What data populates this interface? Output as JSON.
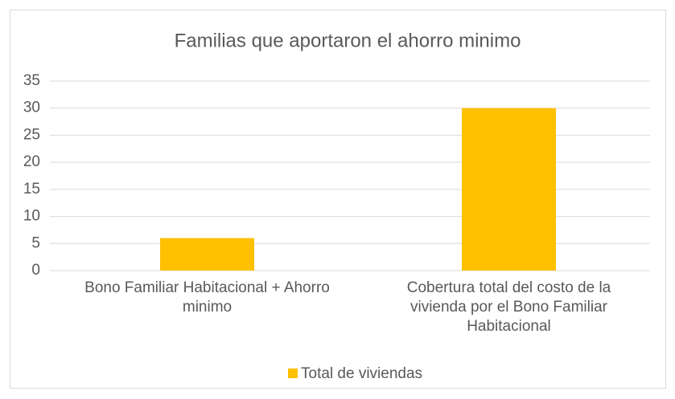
{
  "chart_data": {
    "type": "bar",
    "title": "Familias que aportaron el ahorro minimo",
    "categories": [
      "Bono Familiar Habitacional + Ahorro minimo",
      "Cobertura total del costo de la vivienda por el Bono Familiar Habitacional"
    ],
    "series": [
      {
        "name": "Total de viviendas",
        "color": "#ffc000",
        "values": [
          6,
          30
        ]
      }
    ],
    "ylim": [
      0,
      35
    ],
    "yticks": [
      0,
      5,
      10,
      15,
      20,
      25,
      30,
      35
    ],
    "grid": true,
    "legend": "bottom"
  }
}
